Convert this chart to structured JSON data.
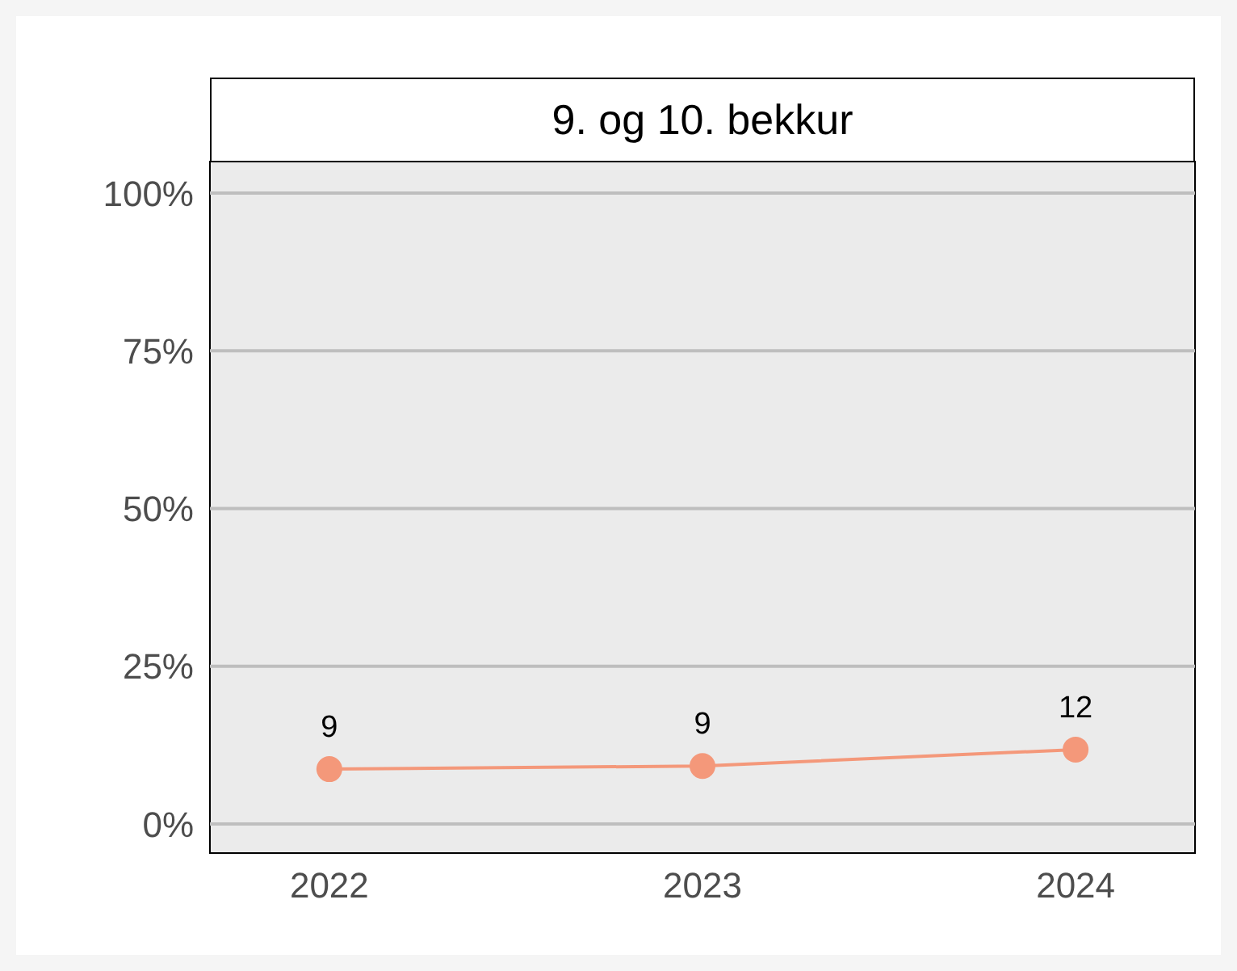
{
  "chart_data": {
    "type": "line",
    "title": "9. og 10. bekkur",
    "categories": [
      "2022",
      "2023",
      "2024"
    ],
    "series": [
      {
        "color": "#f4987a",
        "values": [
          8.7,
          9.2,
          11.8
        ],
        "value_labels": [
          "9",
          "9",
          "12"
        ]
      }
    ],
    "ylim": [
      -4.6,
      105
    ],
    "yticks": [
      {
        "value": 0,
        "label": "0%"
      },
      {
        "value": 25,
        "label": "25%"
      },
      {
        "value": 50,
        "label": "50%"
      },
      {
        "value": 75,
        "label": "75%"
      },
      {
        "value": 100,
        "label": "100%"
      }
    ],
    "grid": "y",
    "marker": "circle",
    "line_style": "solid"
  }
}
